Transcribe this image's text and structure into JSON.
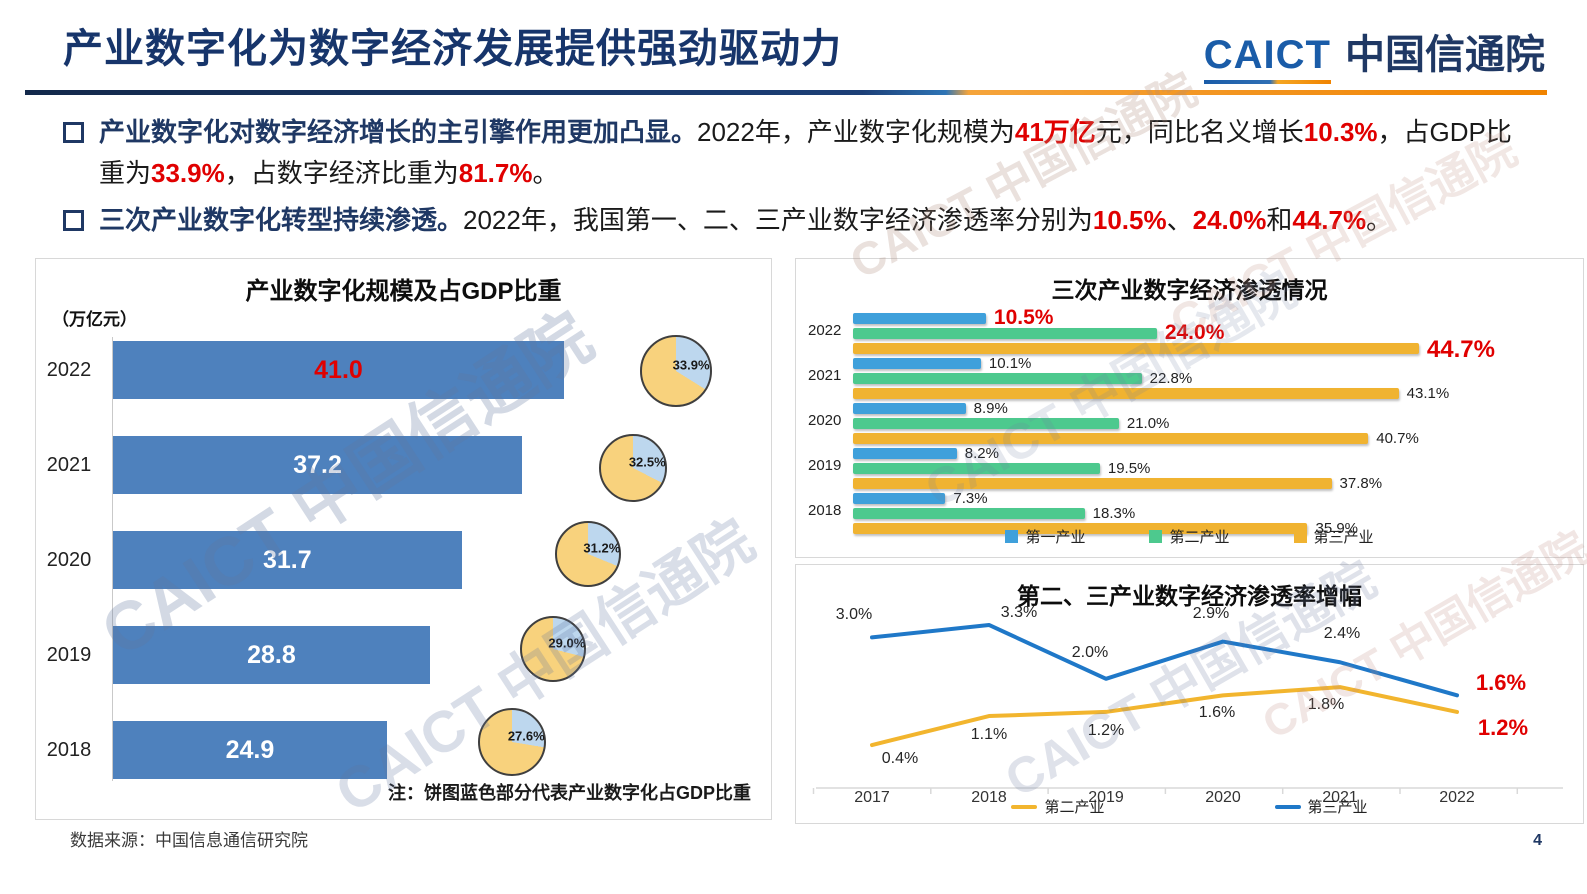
{
  "watermark": "CAICT 中国信通院",
  "header": {
    "title": "产业数字化为数字经济发展提供强劲驱动力",
    "logo": {
      "caict": "CAICT",
      "cn": "中国信通院"
    }
  },
  "bullets": [
    {
      "lead": "产业数字化对数字经济增长的主引擎作用更加凸显。",
      "segments": [
        {
          "t": "2022年，产业数字化规模为"
        },
        {
          "t": "41万亿",
          "hl": true
        },
        {
          "t": "元，同比名义增长"
        },
        {
          "t": "10.3%",
          "hl": true
        },
        {
          "t": "，占GDP比重为"
        },
        {
          "t": "33.9%",
          "hl": true
        },
        {
          "t": "，占数字经济比重为"
        },
        {
          "t": "81.7%",
          "hl": true
        },
        {
          "t": "。"
        }
      ]
    },
    {
      "lead": "三次产业数字化转型持续渗透。",
      "segments": [
        {
          "t": "2022年，我国第一、二、三产业数字经济渗透率分别为"
        },
        {
          "t": "10.5%",
          "hl": true
        },
        {
          "t": "、"
        },
        {
          "t": "24.0%",
          "hl": true
        },
        {
          "t": "和"
        },
        {
          "t": "44.7%",
          "hl": true
        },
        {
          "t": "。"
        }
      ]
    }
  ],
  "chart_data": [
    {
      "type": "bar",
      "orientation": "horizontal",
      "title": "产业数字化规模及占GDP比重",
      "unit": "（万亿元）",
      "categories": [
        "2022",
        "2021",
        "2020",
        "2019",
        "2018"
      ],
      "values": [
        41.0,
        37.2,
        31.7,
        28.8,
        24.9
      ],
      "pie_share_pct": [
        33.9,
        32.5,
        31.2,
        29.0,
        27.6
      ],
      "note": "注：饼图蓝色部分代表产业数字化占GDP比重",
      "bar_color": "#4E81BD",
      "highlight_color": "#E00000",
      "pie_colors": {
        "share": "#BDD7EE",
        "rest": "#F8D27D"
      }
    },
    {
      "type": "bar",
      "orientation": "horizontal-grouped",
      "title": "三次产业数字经济渗透情况",
      "categories": [
        "2022",
        "2021",
        "2020",
        "2019",
        "2018"
      ],
      "series": [
        {
          "name": "第一产业",
          "color": "#3FA0DB",
          "values": [
            10.5,
            10.1,
            8.9,
            8.2,
            7.3
          ]
        },
        {
          "name": "第二产业",
          "color": "#4DC98E",
          "values": [
            24.0,
            22.8,
            21.0,
            19.5,
            18.3
          ]
        },
        {
          "name": "第三产业",
          "color": "#F0B331",
          "values": [
            44.7,
            43.1,
            40.7,
            37.8,
            35.9
          ]
        }
      ],
      "highlight_category": "2022",
      "highlight_color": "#E00000",
      "legend_position": "bottom"
    },
    {
      "type": "line",
      "title": "第二、三产业数字经济渗透率增幅",
      "x": [
        "2017",
        "2018",
        "2019",
        "2020",
        "2021",
        "2022"
      ],
      "series": [
        {
          "name": "第二产业",
          "color": "#F2B52E",
          "values": [
            0.4,
            1.1,
            1.2,
            1.6,
            1.8,
            1.2
          ]
        },
        {
          "name": "第三产业",
          "color": "#1F78C8",
          "values": [
            3.0,
            3.3,
            2.0,
            2.9,
            2.4,
            1.6
          ]
        }
      ],
      "highlight_last_point": true,
      "highlight_color": "#E00000",
      "ylim": [
        0,
        3.5
      ],
      "grid": false,
      "legend_position": "bottom"
    }
  ],
  "footer": {
    "source": "数据来源：中国信息通信研究院",
    "page": "4"
  }
}
